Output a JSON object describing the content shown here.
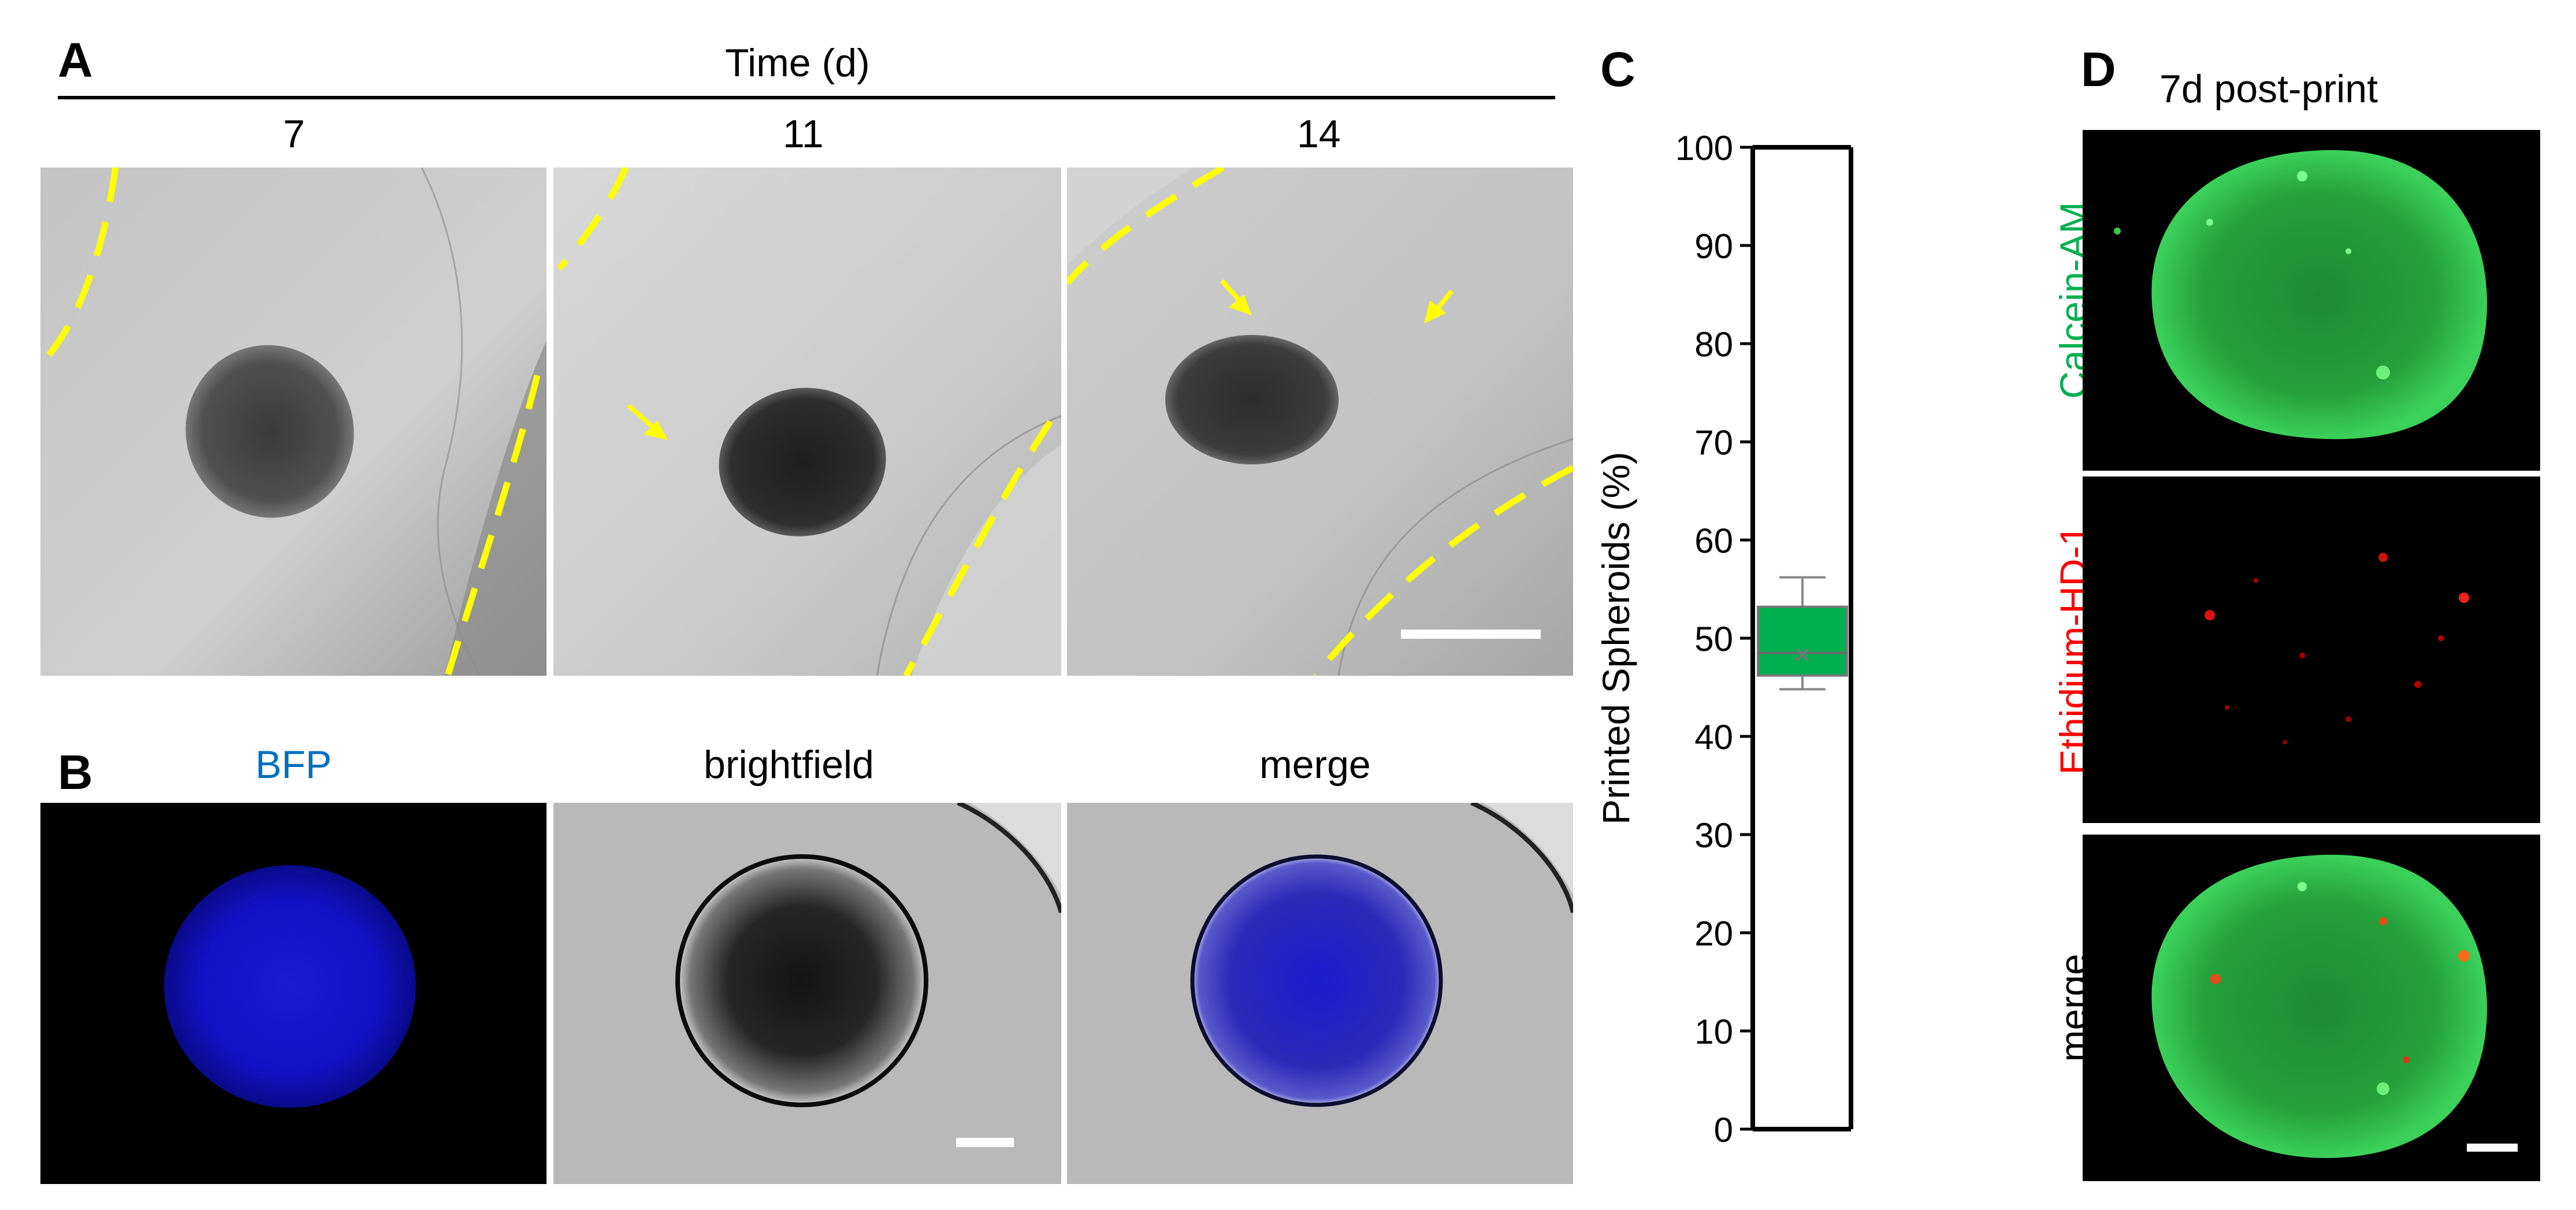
{
  "panelA": {
    "letter": "A",
    "axis_title": "Time (d)",
    "timepoints": [
      "7",
      "11",
      "14"
    ]
  },
  "panelB": {
    "letter": "B",
    "channels": [
      "BFP",
      "brightfield",
      "merge"
    ]
  },
  "panelC": {
    "letter": "C",
    "chart_data": {
      "type": "box",
      "title": "",
      "xlabel": "",
      "ylabel": "Printed Spheroids (%)",
      "ylim": [
        0,
        100
      ],
      "yticks": [
        0,
        10,
        20,
        30,
        40,
        50,
        60,
        70,
        80,
        90,
        100
      ],
      "series": [
        {
          "name": "Printed Spheroids",
          "min": 44.8,
          "q1": 46.2,
          "median": 48.5,
          "mean": 48.3,
          "q3": 53.2,
          "max": 56.2,
          "color": "#00b050"
        }
      ]
    }
  },
  "panelD": {
    "letter": "D",
    "title": "7d post-print",
    "channels": [
      {
        "label": "Calcein-AM",
        "color": "#00b050"
      },
      {
        "label": "Ethidium-HD-1",
        "color": "#ff0000"
      },
      {
        "label": "merge",
        "color": "#000000"
      }
    ]
  },
  "colors": {
    "bfp": "#0070c0",
    "annotation": "#ffff00",
    "box_fill": "#00b050"
  }
}
